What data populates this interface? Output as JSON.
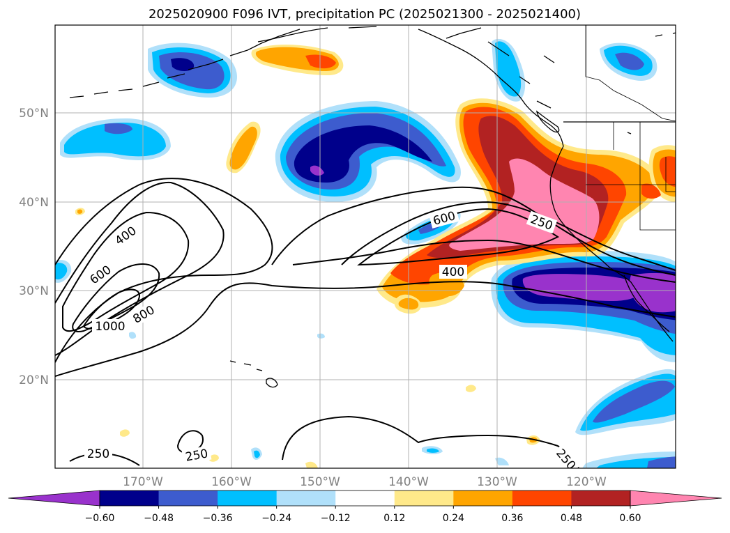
{
  "title": "2025020900 F096 IVT, precipitation PC (2025021300 - 2025021400)",
  "lat_ticks": [
    "50°N",
    "40°N",
    "30°N",
    "20°N"
  ],
  "lon_ticks": [
    "170°W",
    "160°W",
    "150°W",
    "140°W",
    "130°W",
    "120°W"
  ],
  "colorbar": {
    "ticks": [
      "−0.60",
      "−0.48",
      "−0.36",
      "−0.24",
      "−0.12",
      "0.12",
      "0.24",
      "0.36",
      "0.48",
      "0.60"
    ],
    "colors": [
      "#9932cc",
      "#00008b",
      "#3d5cce",
      "#00bfff",
      "#b0e0fa",
      "#ffffff",
      "#ffe98a",
      "#ffa500",
      "#ff4500",
      "#b22222",
      "#ff85b0"
    ]
  },
  "contour_labels": {
    "c400_a": "400",
    "c600_a": "600",
    "c1000": "1000",
    "c800": "800",
    "c600_b": "600",
    "c250_a": "250",
    "c400_b": "400",
    "c250_b": "250",
    "c250_c": "250",
    "c250_d": "250"
  },
  "colors": {
    "pink": "#ff85b0",
    "firebrick": "#b22222",
    "orangered": "#ff4500",
    "orange": "#ffa500",
    "lightyellow": "#ffe98a",
    "lightblue": "#b0e0fa",
    "deepsky": "#00bfff",
    "royal": "#3d5cce",
    "navy": "#00008b",
    "purple": "#9932cc"
  }
}
